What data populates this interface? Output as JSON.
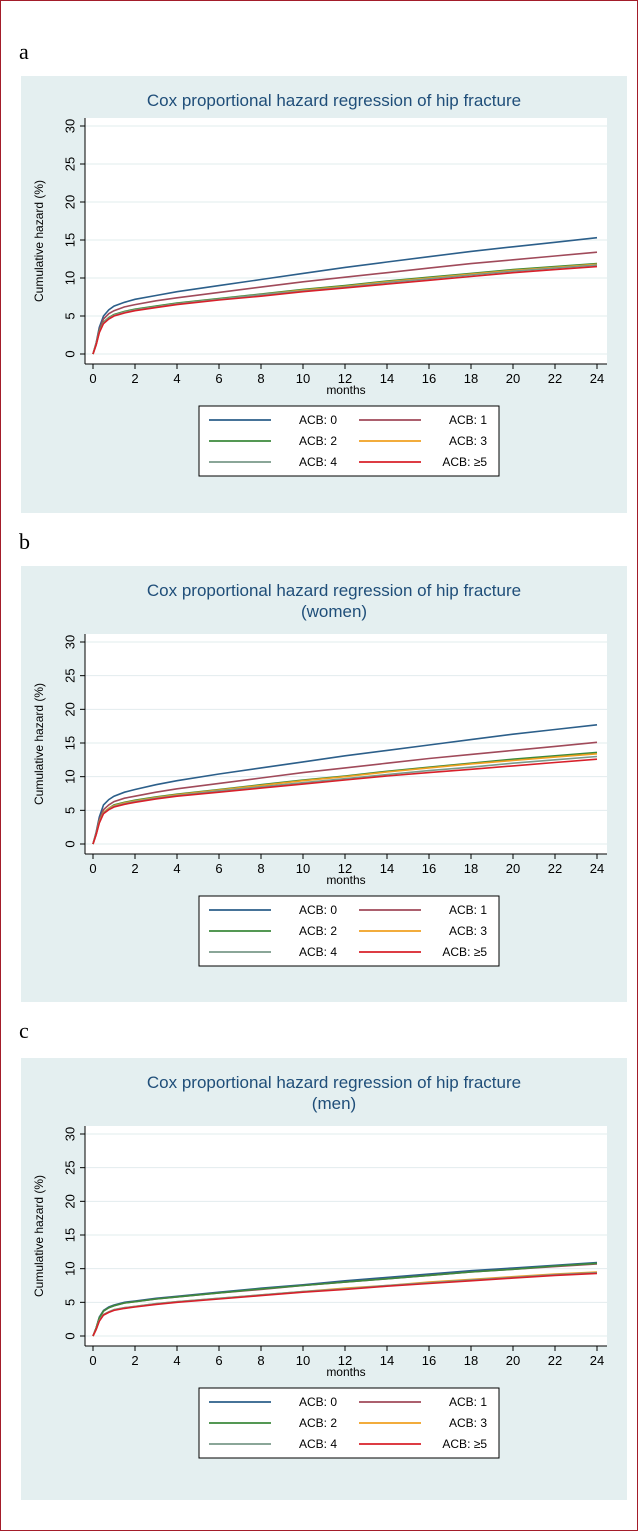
{
  "panel_letters": [
    "a",
    "b",
    "c"
  ],
  "colors": {
    "panel_bg": "#e4eff0",
    "plot_bg": "#ffffff",
    "frame_border": "#a31d2a",
    "series": {
      "ACB: 0": "#2c5f8a",
      "ACB: 1": "#a04a5a",
      "ACB: 2": "#3c8a3c",
      "ACB: 3": "#f0a020",
      "ACB: 4": "#7a9a8a",
      "ACB: ≥5": "#d8202a"
    }
  },
  "chart_data": [
    {
      "panel": "a",
      "type": "line",
      "title": "Cox proportional hazard regression of hip fracture",
      "subtitle": "",
      "xlabel": "months",
      "ylabel": "Cumulative hazard (%)",
      "xlim": [
        0,
        24
      ],
      "ylim": [
        0,
        30
      ],
      "xticks": [
        0,
        2,
        4,
        6,
        8,
        10,
        12,
        14,
        16,
        18,
        20,
        22,
        24
      ],
      "yticks": [
        0,
        5,
        10,
        15,
        20,
        25,
        30
      ],
      "grid": true,
      "legend_position": "bottom",
      "series": [
        {
          "name": "ACB: 0",
          "x": [
            0,
            0.15,
            0.3,
            0.5,
            0.75,
            1,
            1.5,
            2,
            3,
            4,
            6,
            8,
            10,
            12,
            14,
            16,
            18,
            20,
            22,
            24
          ],
          "y": [
            0,
            1.5,
            3.5,
            5.0,
            5.8,
            6.3,
            6.8,
            7.2,
            7.7,
            8.2,
            9.0,
            9.8,
            10.6,
            11.4,
            12.1,
            12.8,
            13.5,
            14.1,
            14.7,
            15.3
          ]
        },
        {
          "name": "ACB: 1",
          "x": [
            0,
            0.15,
            0.3,
            0.5,
            0.75,
            1,
            1.5,
            2,
            3,
            4,
            6,
            8,
            10,
            12,
            14,
            16,
            18,
            20,
            22,
            24
          ],
          "y": [
            0,
            1.4,
            3.2,
            4.6,
            5.3,
            5.7,
            6.2,
            6.5,
            7.0,
            7.4,
            8.1,
            8.8,
            9.5,
            10.1,
            10.7,
            11.3,
            11.9,
            12.4,
            12.9,
            13.4
          ]
        },
        {
          "name": "ACB: 2",
          "x": [
            0,
            0.15,
            0.3,
            0.5,
            0.75,
            1,
            1.5,
            2,
            3,
            4,
            6,
            8,
            10,
            12,
            14,
            16,
            18,
            20,
            22,
            24
          ],
          "y": [
            0,
            1.3,
            3.0,
            4.2,
            4.8,
            5.2,
            5.6,
            5.9,
            6.3,
            6.7,
            7.3,
            7.9,
            8.5,
            9.0,
            9.6,
            10.1,
            10.6,
            11.1,
            11.5,
            11.9
          ]
        },
        {
          "name": "ACB: 3",
          "x": [
            0,
            0.15,
            0.3,
            0.5,
            0.75,
            1,
            1.5,
            2,
            3,
            4,
            6,
            8,
            10,
            12,
            14,
            16,
            18,
            20,
            22,
            24
          ],
          "y": [
            0,
            1.3,
            2.9,
            4.1,
            4.7,
            5.1,
            5.5,
            5.8,
            6.2,
            6.6,
            7.2,
            7.8,
            8.4,
            8.9,
            9.5,
            10.0,
            10.5,
            11.0,
            11.4,
            11.8
          ]
        },
        {
          "name": "ACB: 4",
          "x": [
            0,
            0.15,
            0.3,
            0.5,
            0.75,
            1,
            1.5,
            2,
            3,
            4,
            6,
            8,
            10,
            12,
            14,
            16,
            18,
            20,
            22,
            24
          ],
          "y": [
            0,
            1.3,
            2.9,
            4.1,
            4.7,
            5.1,
            5.5,
            5.8,
            6.2,
            6.6,
            7.2,
            7.8,
            8.3,
            8.8,
            9.4,
            9.9,
            10.4,
            10.9,
            11.3,
            11.7
          ]
        },
        {
          "name": "ACB: ≥5",
          "x": [
            0,
            0.15,
            0.3,
            0.5,
            0.75,
            1,
            1.5,
            2,
            3,
            4,
            6,
            8,
            10,
            12,
            14,
            16,
            18,
            20,
            22,
            24
          ],
          "y": [
            0,
            1.2,
            2.8,
            4.0,
            4.6,
            5.0,
            5.4,
            5.7,
            6.1,
            6.5,
            7.1,
            7.6,
            8.2,
            8.7,
            9.2,
            9.7,
            10.2,
            10.7,
            11.1,
            11.5
          ]
        }
      ]
    },
    {
      "panel": "b",
      "type": "line",
      "title": "Cox proportional hazard regression of hip fracture",
      "subtitle": "(women)",
      "xlabel": "months",
      "ylabel": "Cumulative hazard (%)",
      "xlim": [
        0,
        24
      ],
      "ylim": [
        0,
        30
      ],
      "xticks": [
        0,
        2,
        4,
        6,
        8,
        10,
        12,
        14,
        16,
        18,
        20,
        22,
        24
      ],
      "yticks": [
        0,
        5,
        10,
        15,
        20,
        25,
        30
      ],
      "grid": true,
      "legend_position": "bottom",
      "series": [
        {
          "name": "ACB: 0",
          "x": [
            0,
            0.15,
            0.3,
            0.5,
            0.75,
            1,
            1.5,
            2,
            3,
            4,
            6,
            8,
            10,
            12,
            14,
            16,
            18,
            20,
            22,
            24
          ],
          "y": [
            0,
            1.8,
            4.0,
            5.8,
            6.6,
            7.1,
            7.7,
            8.1,
            8.8,
            9.4,
            10.4,
            11.3,
            12.2,
            13.1,
            13.9,
            14.7,
            15.5,
            16.3,
            17.0,
            17.7
          ]
        },
        {
          "name": "ACB: 1",
          "x": [
            0,
            0.15,
            0.3,
            0.5,
            0.75,
            1,
            1.5,
            2,
            3,
            4,
            6,
            8,
            10,
            12,
            14,
            16,
            18,
            20,
            22,
            24
          ],
          "y": [
            0,
            1.6,
            3.6,
            5.1,
            5.8,
            6.3,
            6.8,
            7.1,
            7.7,
            8.2,
            9.0,
            9.8,
            10.6,
            11.3,
            12.0,
            12.7,
            13.3,
            13.9,
            14.5,
            15.1
          ]
        },
        {
          "name": "ACB: 2",
          "x": [
            0,
            0.15,
            0.3,
            0.5,
            0.75,
            1,
            1.5,
            2,
            3,
            4,
            6,
            8,
            10,
            12,
            14,
            16,
            18,
            20,
            22,
            24
          ],
          "y": [
            0,
            1.5,
            3.3,
            4.7,
            5.3,
            5.8,
            6.2,
            6.5,
            7.0,
            7.4,
            8.1,
            8.8,
            9.5,
            10.1,
            10.8,
            11.4,
            12.0,
            12.6,
            13.1,
            13.6
          ]
        },
        {
          "name": "ACB: 3",
          "x": [
            0,
            0.15,
            0.3,
            0.5,
            0.75,
            1,
            1.5,
            2,
            3,
            4,
            6,
            8,
            10,
            12,
            14,
            16,
            18,
            20,
            22,
            24
          ],
          "y": [
            0,
            1.5,
            3.3,
            4.7,
            5.3,
            5.7,
            6.1,
            6.4,
            6.9,
            7.3,
            8.0,
            8.7,
            9.4,
            10.0,
            10.7,
            11.3,
            11.9,
            12.4,
            12.9,
            13.4
          ]
        },
        {
          "name": "ACB: 4",
          "x": [
            0,
            0.15,
            0.3,
            0.5,
            0.75,
            1,
            1.5,
            2,
            3,
            4,
            6,
            8,
            10,
            12,
            14,
            16,
            18,
            20,
            22,
            24
          ],
          "y": [
            0,
            1.5,
            3.2,
            4.6,
            5.2,
            5.6,
            6.0,
            6.3,
            6.8,
            7.2,
            7.9,
            8.5,
            9.1,
            9.7,
            10.3,
            10.9,
            11.4,
            12.0,
            12.5,
            13.0
          ]
        },
        {
          "name": "ACB: ≥5",
          "x": [
            0,
            0.15,
            0.3,
            0.5,
            0.75,
            1,
            1.5,
            2,
            3,
            4,
            6,
            8,
            10,
            12,
            14,
            16,
            18,
            20,
            22,
            24
          ],
          "y": [
            0,
            1.4,
            3.1,
            4.5,
            5.1,
            5.5,
            5.9,
            6.2,
            6.7,
            7.1,
            7.7,
            8.3,
            8.9,
            9.5,
            10.1,
            10.6,
            11.1,
            11.6,
            12.1,
            12.6
          ]
        }
      ]
    },
    {
      "panel": "c",
      "type": "line",
      "title": "Cox proportional hazard regression of hip fracture",
      "subtitle": "(men)",
      "xlabel": "months",
      "ylabel": "Cumulative hazard (%)",
      "xlim": [
        0,
        24
      ],
      "ylim": [
        0,
        30
      ],
      "xticks": [
        0,
        2,
        4,
        6,
        8,
        10,
        12,
        14,
        16,
        18,
        20,
        22,
        24
      ],
      "yticks": [
        0,
        5,
        10,
        15,
        20,
        25,
        30
      ],
      "grid": true,
      "legend_position": "bottom",
      "series": [
        {
          "name": "ACB: 0",
          "x": [
            0,
            0.15,
            0.3,
            0.5,
            0.75,
            1,
            1.5,
            2,
            3,
            4,
            6,
            8,
            10,
            12,
            14,
            16,
            18,
            20,
            22,
            24
          ],
          "y": [
            0,
            1.2,
            2.8,
            3.8,
            4.3,
            4.6,
            5.0,
            5.2,
            5.6,
            5.9,
            6.5,
            7.1,
            7.6,
            8.2,
            8.7,
            9.2,
            9.7,
            10.1,
            10.5,
            10.9
          ]
        },
        {
          "name": "ACB: 1",
          "x": [
            0,
            0.15,
            0.3,
            0.5,
            0.75,
            1,
            1.5,
            2,
            3,
            4,
            6,
            8,
            10,
            12,
            14,
            16,
            18,
            20,
            22,
            24
          ],
          "y": [
            0,
            1.2,
            2.7,
            3.7,
            4.2,
            4.5,
            4.9,
            5.1,
            5.5,
            5.8,
            6.4,
            6.9,
            7.5,
            8.0,
            8.5,
            9.0,
            9.5,
            9.9,
            10.3,
            10.7
          ]
        },
        {
          "name": "ACB: 2",
          "x": [
            0,
            0.15,
            0.3,
            0.5,
            0.75,
            1,
            1.5,
            2,
            3,
            4,
            6,
            8,
            10,
            12,
            14,
            16,
            18,
            20,
            22,
            24
          ],
          "y": [
            0,
            1.2,
            2.7,
            3.7,
            4.2,
            4.5,
            4.9,
            5.1,
            5.5,
            5.8,
            6.4,
            7.0,
            7.5,
            8.0,
            8.5,
            9.0,
            9.5,
            9.9,
            10.4,
            10.8
          ]
        },
        {
          "name": "ACB: 3",
          "x": [
            0,
            0.15,
            0.3,
            0.5,
            0.75,
            1,
            1.5,
            2,
            3,
            4,
            6,
            8,
            10,
            12,
            14,
            16,
            18,
            20,
            22,
            24
          ],
          "y": [
            0,
            1.0,
            2.3,
            3.2,
            3.6,
            3.9,
            4.2,
            4.4,
            4.8,
            5.1,
            5.6,
            6.1,
            6.6,
            7.1,
            7.5,
            8.0,
            8.4,
            8.8,
            9.2,
            9.5
          ]
        },
        {
          "name": "ACB: 4",
          "x": [
            0,
            0.15,
            0.3,
            0.5,
            0.75,
            1,
            1.5,
            2,
            3,
            4,
            6,
            8,
            10,
            12,
            14,
            16,
            18,
            20,
            22,
            24
          ],
          "y": [
            0,
            1.0,
            2.3,
            3.2,
            3.6,
            3.9,
            4.2,
            4.4,
            4.8,
            5.1,
            5.6,
            6.1,
            6.6,
            7.0,
            7.5,
            7.9,
            8.3,
            8.7,
            9.1,
            9.4
          ]
        },
        {
          "name": "ACB: ≥5",
          "x": [
            0,
            0.15,
            0.3,
            0.5,
            0.75,
            1,
            1.5,
            2,
            3,
            4,
            6,
            8,
            10,
            12,
            14,
            16,
            18,
            20,
            22,
            24
          ],
          "y": [
            0,
            1.0,
            2.2,
            3.1,
            3.5,
            3.8,
            4.1,
            4.3,
            4.7,
            5.0,
            5.5,
            6.0,
            6.5,
            6.9,
            7.4,
            7.8,
            8.2,
            8.6,
            9.0,
            9.3
          ]
        }
      ]
    }
  ]
}
